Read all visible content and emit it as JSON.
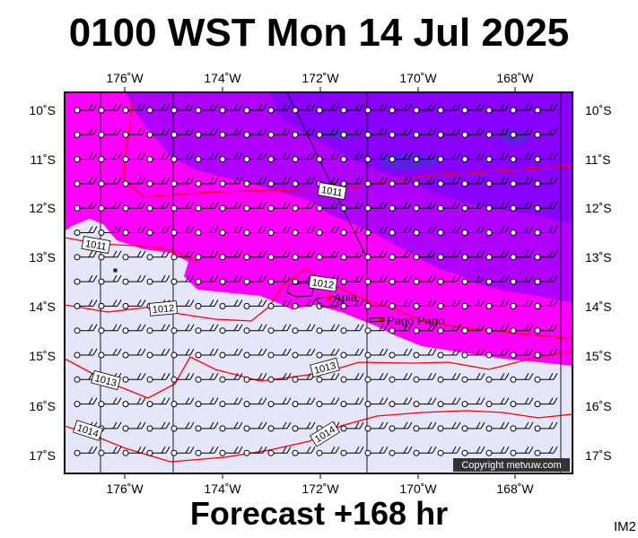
{
  "header": {
    "title": "0100 WST Mon 14 Jul 2025"
  },
  "footer": {
    "forecast": "Forecast +168 hr",
    "code": "IM2"
  },
  "map": {
    "longitude_labels": [
      "176˚W",
      "174˚W",
      "172˚W",
      "170˚W",
      "168˚W"
    ],
    "latitude_labels": [
      "10˚S",
      "11˚S",
      "12˚S",
      "13˚S",
      "14˚S",
      "15˚S",
      "16˚S",
      "17˚S"
    ],
    "places": [
      {
        "name": "Apia"
      },
      {
        "name": "Pago Pago"
      }
    ],
    "isobars": [
      {
        "label": "1011"
      },
      {
        "label": "1011"
      },
      {
        "label": "1012"
      },
      {
        "label": "1012"
      },
      {
        "label": "1013"
      },
      {
        "label": "1013"
      },
      {
        "label": "1014"
      },
      {
        "label": "1014"
      }
    ],
    "copyright": "Copyright metvuw.com",
    "colors": {
      "light_lavender": "#e6e6fa",
      "magenta": "#ff00ff",
      "purple": "#b000ff",
      "violet": "#8a00ff",
      "deep_blue": "#5a22e0",
      "isobar": "#ff0000",
      "frame": "#000000"
    }
  }
}
